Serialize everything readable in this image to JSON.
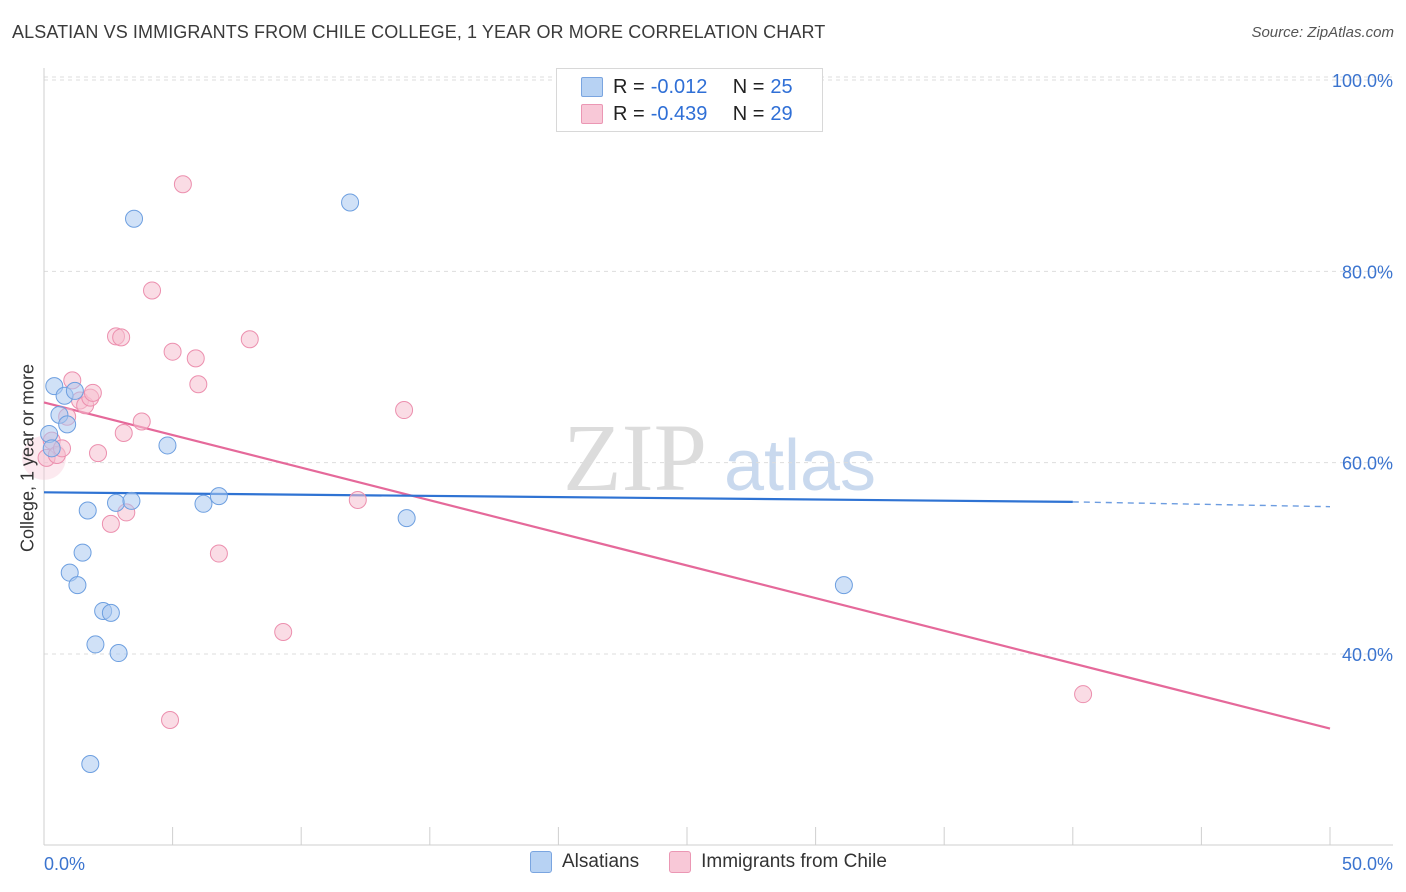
{
  "title": "ALSATIAN VS IMMIGRANTS FROM CHILE COLLEGE, 1 YEAR OR MORE CORRELATION CHART",
  "source": "Source: ZipAtlas.com",
  "watermark": {
    "zip": "ZIP",
    "atlas": "atlas"
  },
  "legend": {
    "series1": {
      "r_label": "R = ",
      "r_value": "-0.012",
      "n_label": "N = ",
      "n_value": "25"
    },
    "series2": {
      "r_label": "R = ",
      "r_value": "-0.439",
      "n_label": "N = ",
      "n_value": "29"
    }
  },
  "bottom_legend": {
    "series1": "Alsatians",
    "series2": "Immigrants from Chile"
  },
  "colors": {
    "blue_fill": "#a9c8f0",
    "blue_stroke": "#6d9fe0",
    "blue_line": "#2f73d3",
    "pink_fill": "#f6bfd0",
    "pink_stroke": "#ec8fae",
    "pink_line": "#e5699a",
    "axis_text": "#3b74cf",
    "grid": "#dddddd"
  },
  "chart_data": {
    "type": "scatter",
    "title": "ALSATIAN VS IMMIGRANTS FROM CHILE COLLEGE, 1 YEAR OR MORE CORRELATION CHART",
    "xlabel": "",
    "ylabel": "College, 1 year or more",
    "xlim": [
      0,
      50
    ],
    "ylim": [
      20,
      103
    ],
    "x_tick_labels": [
      "0.0%",
      "50.0%"
    ],
    "y_ticks": [
      40,
      60,
      80,
      100
    ],
    "y_tick_labels": [
      "40.0%",
      "60.0%",
      "80.0%",
      "100.0%"
    ],
    "series": [
      {
        "name": "Alsatians",
        "r": -0.012,
        "n": 25,
        "points": [
          [
            0.2,
            63.0
          ],
          [
            0.3,
            61.5
          ],
          [
            0.4,
            68.0
          ],
          [
            0.6,
            65.0
          ],
          [
            0.8,
            67.0
          ],
          [
            0.9,
            64.0
          ],
          [
            1.0,
            48.5
          ],
          [
            1.3,
            47.2
          ],
          [
            1.5,
            50.6
          ],
          [
            1.7,
            55.0
          ],
          [
            1.8,
            28.5
          ],
          [
            2.0,
            41.0
          ],
          [
            2.3,
            44.5
          ],
          [
            2.6,
            44.3
          ],
          [
            2.8,
            55.8
          ],
          [
            2.9,
            40.1
          ],
          [
            3.5,
            85.5
          ],
          [
            4.8,
            61.8
          ],
          [
            6.2,
            55.7
          ],
          [
            6.8,
            56.5
          ],
          [
            11.9,
            87.2
          ],
          [
            14.1,
            54.2
          ],
          [
            31.1,
            47.2
          ],
          [
            3.4,
            56.0
          ],
          [
            1.2,
            67.5
          ]
        ],
        "trend": {
          "x": [
            0,
            40
          ],
          "y": [
            56.9,
            55.9
          ],
          "dashed_to": [
            50,
            55.4
          ]
        }
      },
      {
        "name": "Immigrants from Chile",
        "r": -0.439,
        "n": 29,
        "points": [
          [
            0.1,
            60.5
          ],
          [
            0.3,
            62.3
          ],
          [
            0.5,
            60.8
          ],
          [
            0.7,
            61.5
          ],
          [
            0.9,
            64.8
          ],
          [
            1.1,
            68.6
          ],
          [
            1.4,
            66.5
          ],
          [
            1.6,
            66.0
          ],
          [
            1.8,
            66.8
          ],
          [
            1.9,
            67.3
          ],
          [
            2.1,
            61.0
          ],
          [
            2.6,
            53.6
          ],
          [
            2.8,
            73.2
          ],
          [
            3.0,
            73.1
          ],
          [
            3.1,
            63.1
          ],
          [
            3.2,
            54.8
          ],
          [
            3.8,
            64.3
          ],
          [
            4.2,
            78.0
          ],
          [
            4.9,
            33.1
          ],
          [
            5.0,
            71.6
          ],
          [
            5.4,
            89.1
          ],
          [
            5.9,
            70.9
          ],
          [
            6.0,
            68.2
          ],
          [
            6.8,
            50.5
          ],
          [
            8.0,
            72.9
          ],
          [
            9.3,
            42.3
          ],
          [
            12.2,
            56.1
          ],
          [
            14.0,
            65.5
          ],
          [
            40.4,
            35.8
          ]
        ],
        "trend": {
          "x": [
            0,
            50
          ],
          "y": [
            66.3,
            32.2
          ]
        }
      }
    ]
  }
}
